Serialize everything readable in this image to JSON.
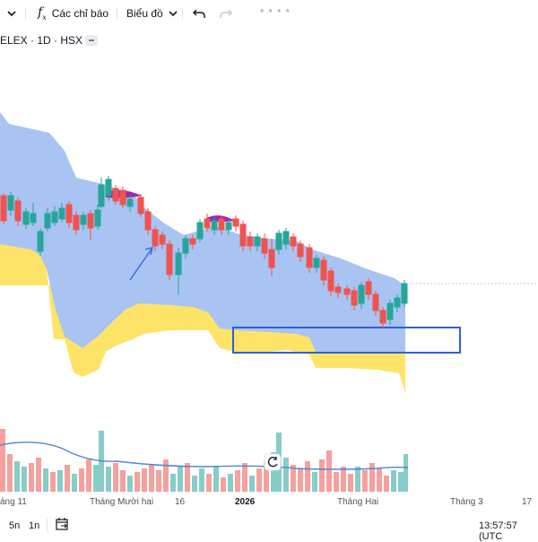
{
  "toolbar": {
    "indicators_label": "Các chỉ báo",
    "chart_type_label": "Biểu đồ",
    "indicators_icon": "fx-icon",
    "undo_icon": "undo-icon",
    "redo_icon": "redo-icon"
  },
  "symbol": {
    "text": "ELEX · 1D · HSX"
  },
  "chart": {
    "type": "candlestick",
    "colors": {
      "up": "#26a69a",
      "down": "#ef5350",
      "cloud_bull": "#a9c3f2",
      "cloud_bear": "#fde468",
      "volume_ma": "#4f85d9",
      "box": "#2f5fd8"
    },
    "reset_icon": "reset-icon"
  },
  "x_axis": {
    "labels": [
      "áng 11",
      "Tháng Mười hai",
      "16",
      "2026",
      "Tháng Hai",
      "Tháng 3",
      "17"
    ]
  },
  "bottom": {
    "range_5n": "5n",
    "range_1n": "1n",
    "calendar_icon": "calendar-icon",
    "clock": "13:57:57 (UTC"
  }
}
